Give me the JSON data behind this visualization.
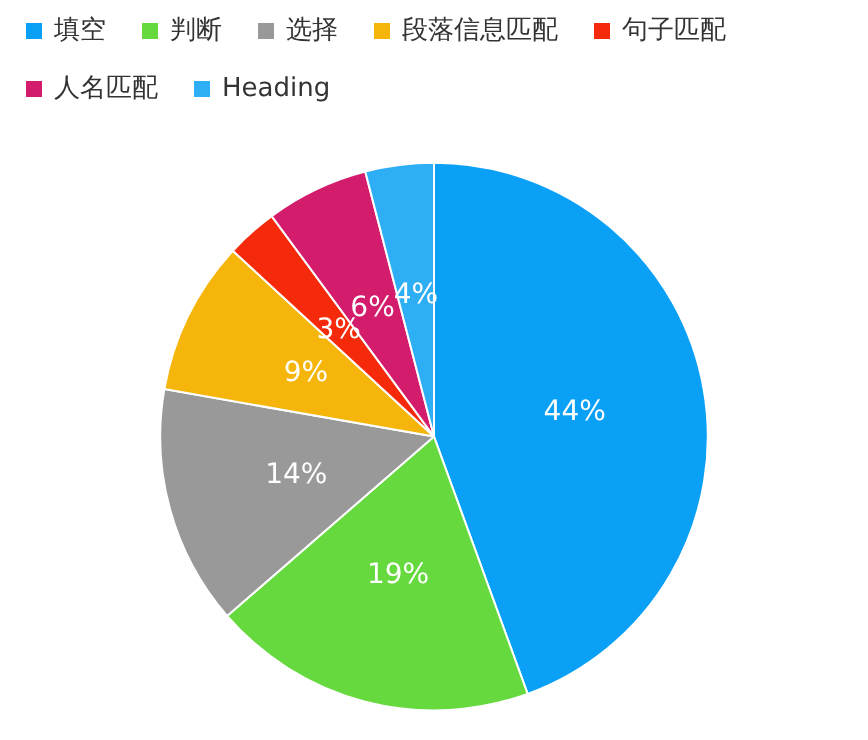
{
  "chart_data": {
    "type": "pie",
    "categories": [
      "填空",
      "判断",
      "选择",
      "段落信息匹配",
      "句子匹配",
      "人名匹配",
      "Heading"
    ],
    "values": [
      44,
      19,
      14,
      9,
      3,
      6,
      4
    ],
    "colors": [
      "#0aa0f5",
      "#66d93f",
      "#999999",
      "#f5b50a",
      "#f52a0a",
      "#d41c6c",
      "#2eaef5"
    ],
    "value_labels": [
      "44%",
      "19%",
      "14%",
      "9%",
      "3%",
      "6%",
      "4%"
    ],
    "legend": "top left"
  }
}
